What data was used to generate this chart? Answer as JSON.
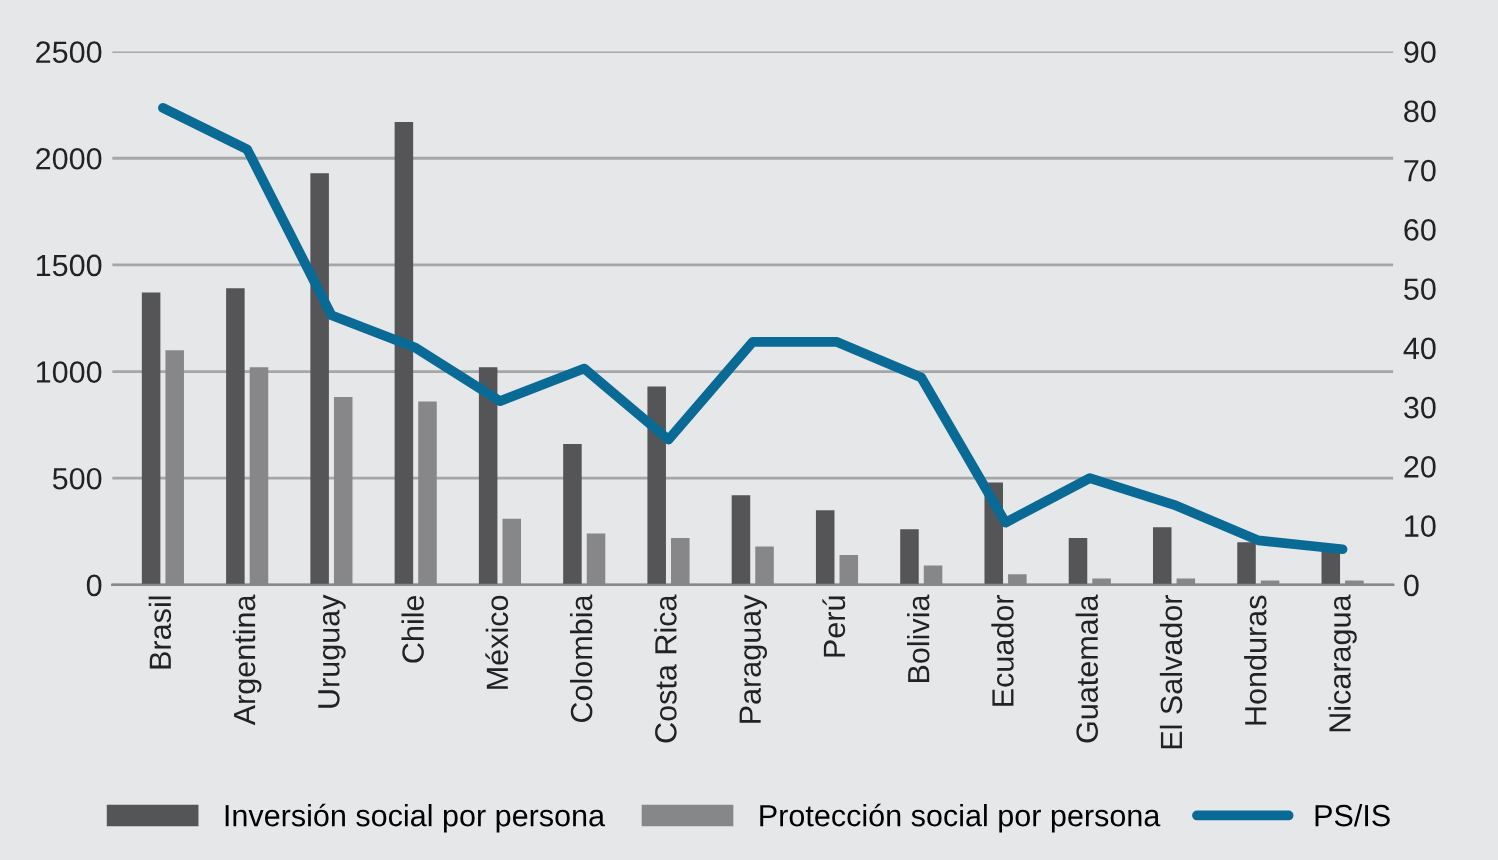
{
  "chart_data": {
    "type": "bar",
    "categories": [
      "Brasil",
      "Argentina",
      "Uruguay",
      "Chile",
      "México",
      "Colombia",
      "Costa Rica",
      "Paraguay",
      "Perú",
      "Bolivia",
      "Ecuador",
      "Guatemala",
      "El Salvador",
      "Honduras",
      "Nicaragua"
    ],
    "series": [
      {
        "name": "Inversión social por persona",
        "color": "#555557",
        "values": [
          1370,
          1390,
          1930,
          2170,
          1020,
          660,
          930,
          420,
          350,
          260,
          480,
          220,
          270,
          200,
          190
        ]
      },
      {
        "name": "Protección social por persona",
        "color": "#87878a",
        "values": [
          1100,
          1020,
          880,
          860,
          310,
          240,
          220,
          180,
          140,
          90,
          50,
          30,
          30,
          20,
          20
        ]
      },
      {
        "name": "PS/IS",
        "type": "line",
        "axis": "y2",
        "color": "#0a6a96",
        "values": [
          80.5,
          73.5,
          45.5,
          40,
          31,
          36.5,
          24.5,
          41,
          41,
          35,
          10.5,
          18,
          13.5,
          7.5,
          6
        ]
      }
    ],
    "ylim": [
      0,
      2500
    ],
    "yticks": [
      0,
      500,
      1000,
      1500,
      2000,
      2500
    ],
    "y2lim": [
      0,
      90
    ],
    "y2ticks": [
      0,
      10,
      20,
      30,
      40,
      50,
      60,
      70,
      80,
      90
    ],
    "grid": "y",
    "legend": "bottom"
  }
}
